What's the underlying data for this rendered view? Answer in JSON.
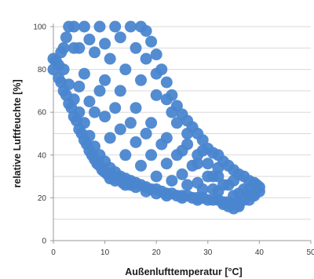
{
  "chart_data": {
    "type": "scatter",
    "title": "",
    "xlabel": "Außenlufttemperatur [°C]",
    "ylabel": "relative Luftfeuchte [%]",
    "xlim": [
      0,
      50
    ],
    "ylim": [
      0,
      100
    ],
    "xticks": [
      "0",
      "10",
      "20",
      "30",
      "40",
      "50"
    ],
    "yticks": [
      "0",
      "20",
      "40",
      "60",
      "80",
      "100"
    ],
    "grid": "horizontal",
    "legend": "none",
    "point_color": "#4a86cf",
    "series": [
      {
        "values_note": "",
        "points": [
          [
            0,
            85
          ],
          [
            0,
            80
          ],
          [
            0.5,
            84
          ],
          [
            1,
            82
          ],
          [
            1,
            76
          ],
          [
            1.5,
            74
          ],
          [
            2,
            80
          ],
          [
            2,
            70
          ],
          [
            2.5,
            68
          ],
          [
            3,
            73
          ],
          [
            3,
            64
          ],
          [
            3.5,
            62
          ],
          [
            4,
            66
          ],
          [
            4,
            58
          ],
          [
            4.5,
            56
          ],
          [
            5,
            60
          ],
          [
            5,
            52
          ],
          [
            5.5,
            50
          ],
          [
            6,
            55
          ],
          [
            6,
            47
          ],
          [
            6.5,
            45
          ],
          [
            7,
            49
          ],
          [
            7,
            42
          ],
          [
            7.5,
            40
          ],
          [
            8,
            44
          ],
          [
            8,
            38
          ],
          [
            8.5,
            36
          ],
          [
            9,
            40
          ],
          [
            9,
            35
          ],
          [
            9.5,
            33
          ],
          [
            10,
            37
          ],
          [
            10,
            32
          ],
          [
            10.5,
            31
          ],
          [
            11,
            34
          ],
          [
            11,
            29
          ],
          [
            11.5,
            30
          ],
          [
            12,
            32
          ],
          [
            12,
            28
          ],
          [
            12.5,
            29
          ],
          [
            13,
            30
          ],
          [
            13.5,
            27
          ],
          [
            14,
            29
          ],
          [
            14,
            26
          ],
          [
            15,
            28
          ],
          [
            15,
            26
          ],
          [
            16,
            27
          ],
          [
            16,
            25
          ],
          [
            17,
            26
          ],
          [
            18,
            25
          ],
          [
            18,
            23
          ],
          [
            19,
            24
          ],
          [
            20,
            24
          ],
          [
            20,
            22
          ],
          [
            21,
            23
          ],
          [
            22,
            22
          ],
          [
            22,
            21
          ],
          [
            23,
            22
          ],
          [
            24,
            21
          ],
          [
            25,
            21
          ],
          [
            25,
            20
          ],
          [
            26,
            21
          ],
          [
            27,
            20
          ],
          [
            28,
            20
          ],
          [
            28,
            19
          ],
          [
            29,
            20
          ],
          [
            30,
            19
          ],
          [
            31,
            19
          ],
          [
            32,
            19
          ],
          [
            33,
            18
          ],
          [
            33,
            17
          ],
          [
            34,
            18
          ],
          [
            34,
            16
          ],
          [
            35,
            17
          ],
          [
            35,
            15
          ],
          [
            36,
            17
          ],
          [
            36,
            16
          ],
          [
            37,
            19
          ],
          [
            38,
            21
          ],
          [
            38,
            19
          ],
          [
            39,
            22
          ],
          [
            39,
            21
          ],
          [
            40,
            23
          ],
          [
            40,
            25
          ],
          [
            39.5,
            26
          ],
          [
            39,
            27
          ],
          [
            38,
            28
          ],
          [
            37,
            30
          ],
          [
            36,
            31
          ],
          [
            35,
            33
          ],
          [
            34,
            35
          ],
          [
            33,
            37
          ],
          [
            32,
            40
          ],
          [
            31,
            41
          ],
          [
            30,
            43
          ],
          [
            29,
            47
          ],
          [
            28,
            50
          ],
          [
            27,
            53
          ],
          [
            26,
            56
          ],
          [
            25,
            59
          ],
          [
            24,
            63
          ],
          [
            23,
            68
          ],
          [
            22,
            74
          ],
          [
            21,
            80
          ],
          [
            20,
            87
          ],
          [
            19,
            93
          ],
          [
            18,
            98
          ],
          [
            17,
            100
          ],
          [
            15,
            100
          ],
          [
            12,
            100
          ],
          [
            9,
            100
          ],
          [
            6,
            100
          ],
          [
            4,
            100
          ],
          [
            3,
            100
          ],
          [
            2.5,
            95
          ],
          [
            2,
            90
          ],
          [
            1.5,
            88
          ],
          [
            5,
            90
          ],
          [
            8,
            88
          ],
          [
            11,
            85
          ],
          [
            14,
            80
          ],
          [
            17,
            75
          ],
          [
            20,
            68
          ],
          [
            23,
            60
          ],
          [
            26,
            50
          ],
          [
            29,
            42
          ],
          [
            32,
            34
          ],
          [
            35,
            28
          ],
          [
            10,
            75
          ],
          [
            13,
            70
          ],
          [
            16,
            62
          ],
          [
            19,
            55
          ],
          [
            22,
            48
          ],
          [
            25,
            42
          ],
          [
            28,
            36
          ],
          [
            31,
            30
          ],
          [
            7,
            65
          ],
          [
            10,
            58
          ],
          [
            13,
            52
          ],
          [
            16,
            46
          ],
          [
            19,
            40
          ],
          [
            22,
            36
          ],
          [
            25,
            31
          ],
          [
            28,
            27
          ],
          [
            31,
            24
          ],
          [
            6,
            78
          ],
          [
            9,
            70
          ],
          [
            12,
            62
          ],
          [
            15,
            55
          ],
          [
            18,
            50
          ],
          [
            21,
            45
          ],
          [
            24,
            40
          ],
          [
            27,
            35
          ],
          [
            30,
            30
          ],
          [
            33,
            26
          ],
          [
            36,
            22
          ],
          [
            4,
            90
          ],
          [
            7,
            94
          ],
          [
            10,
            92
          ],
          [
            13,
            95
          ],
          [
            16,
            90
          ],
          [
            18,
            85
          ],
          [
            20,
            78
          ],
          [
            22,
            66
          ],
          [
            24,
            55
          ],
          [
            26,
            45
          ],
          [
            28,
            40
          ],
          [
            30,
            36
          ],
          [
            32,
            30
          ],
          [
            34,
            26
          ],
          [
            37,
            24
          ],
          [
            5,
            72
          ],
          [
            8,
            60
          ],
          [
            11,
            48
          ],
          [
            14,
            40
          ],
          [
            17,
            35
          ],
          [
            20,
            30
          ],
          [
            23,
            28
          ],
          [
            26,
            26
          ],
          [
            29,
            24
          ],
          [
            32,
            23
          ],
          [
            35,
            21
          ],
          [
            38,
            24
          ]
        ]
      }
    ]
  }
}
